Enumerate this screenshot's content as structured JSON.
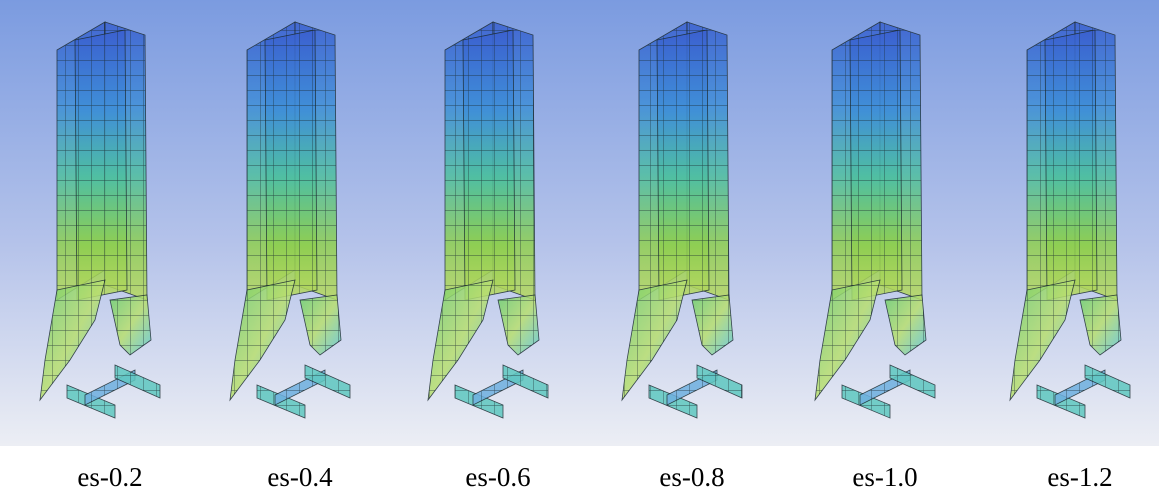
{
  "panels": [
    {
      "label": "es-0.2"
    },
    {
      "label": "es-0.4"
    },
    {
      "label": "es-0.6"
    },
    {
      "label": "es-0.8"
    },
    {
      "label": "es-1.0"
    },
    {
      "label": "es-1.2"
    }
  ]
}
